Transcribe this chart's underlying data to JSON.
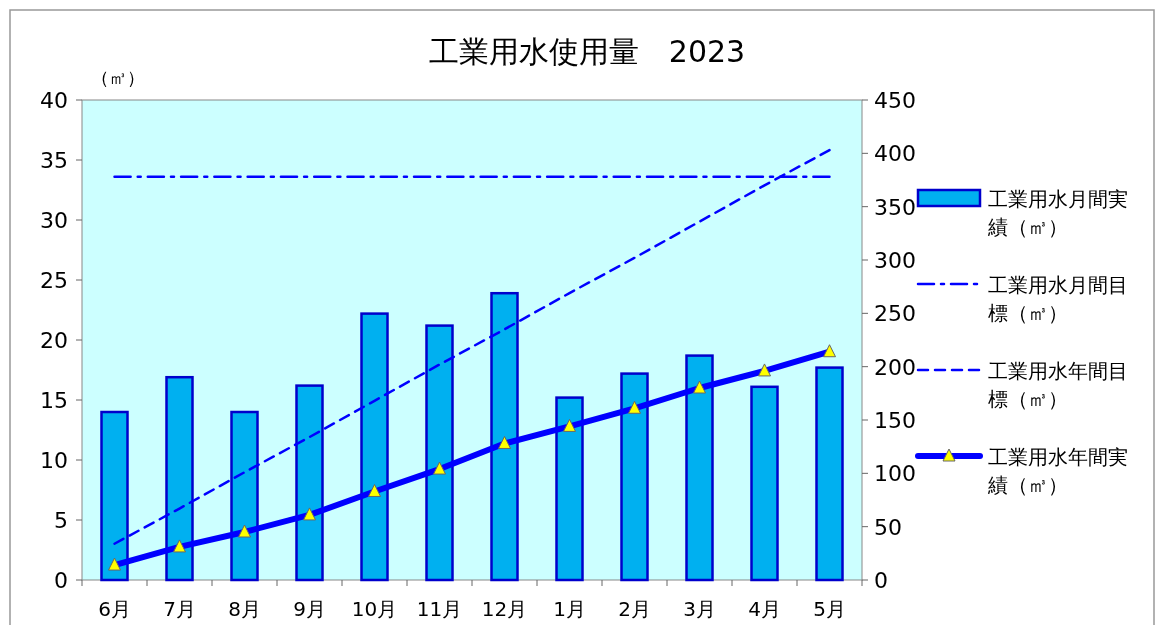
{
  "chart_data": {
    "type": "bar",
    "title": "工業用水使用量　2023",
    "ylabel": "（㎥）",
    "categories": [
      "6月",
      "7月",
      "8月",
      "9月",
      "10月",
      "11月",
      "12月",
      "1月",
      "2月",
      "3月",
      "4月",
      "5月"
    ],
    "series": [
      {
        "name": "工業用水月間実績（㎥）",
        "color": "#00b0f0",
        "values": [
          14.0,
          16.9,
          14.0,
          16.2,
          22.2,
          21.2,
          23.9,
          15.2,
          17.2,
          18.7,
          16.1,
          17.7
        ]
      },
      {
        "name": "工業用水月間目標（㎥）",
        "type": "line",
        "color": "#0000ff",
        "line_style": "dashdot",
        "values": [
          33.6,
          33.6,
          33.6,
          33.6,
          33.6,
          33.6,
          33.6,
          33.6,
          33.6,
          33.6,
          33.6,
          33.6
        ]
      },
      {
        "name": "工業用水年間目標（㎥）",
        "type": "line",
        "color": "#0000ff",
        "line_style": "dashed",
        "axis": "y2",
        "values": [
          34,
          67,
          101,
          134,
          168,
          202,
          235,
          269,
          302,
          336,
          370,
          403
        ]
      },
      {
        "name": "工業用水年間実績（㎥）",
        "type": "line",
        "color": "#0000ff",
        "line_style": "solid",
        "marker": "triangle",
        "axis": "y2",
        "values": [
          14,
          31,
          45,
          61,
          83,
          104,
          128,
          144,
          161,
          180,
          196,
          214
        ]
      }
    ],
    "ylim": [
      0,
      40
    ],
    "yticks": [
      0,
      5,
      10,
      15,
      20,
      25,
      30,
      35,
      40
    ],
    "y2lim": [
      0,
      450
    ],
    "y2ticks": [
      0,
      50,
      100,
      150,
      200,
      250,
      300,
      350,
      400,
      450
    ],
    "legend": "right"
  }
}
